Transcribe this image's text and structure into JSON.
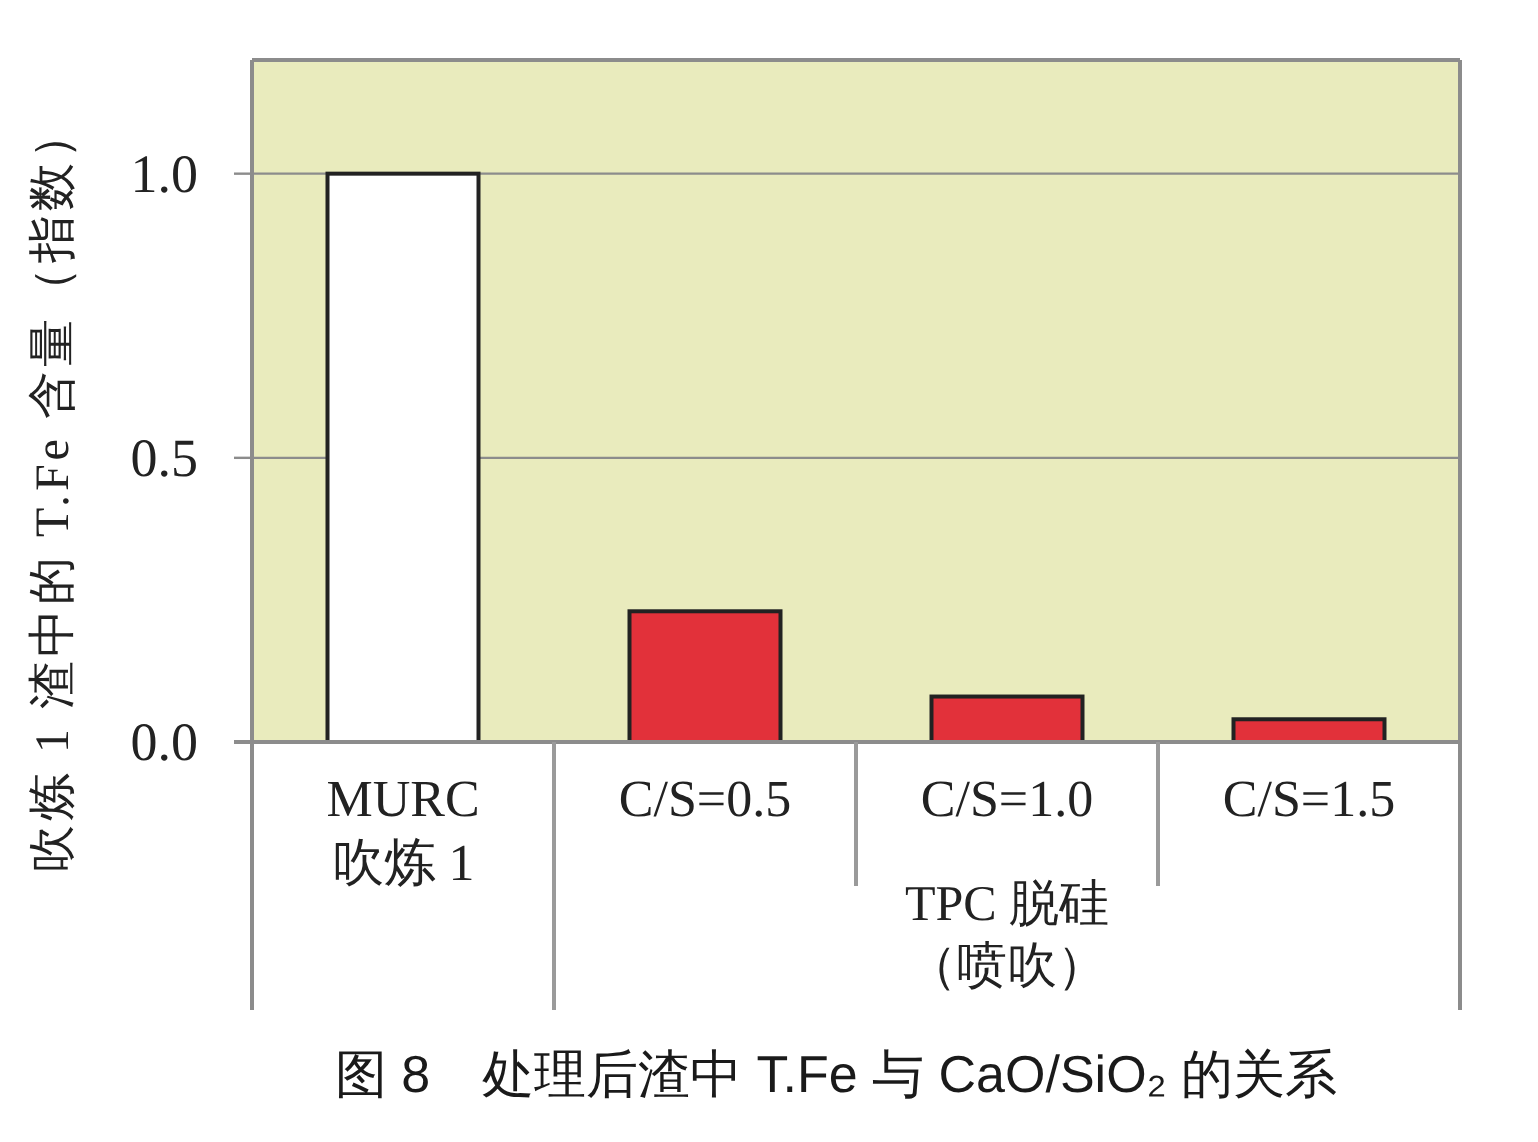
{
  "chart_data": {
    "type": "bar",
    "title": "图 8　处理后渣中 T.Fe 与 CaO/SiO₂ 的关系",
    "ylabel": "吹炼 1 渣中的 T.Fe 含量（指数）",
    "categories": [
      "MURC\n吹炼 1",
      "C/S=0.5",
      "C/S=1.0",
      "C/S=1.5"
    ],
    "values": [
      1.0,
      0.23,
      0.08,
      0.04
    ],
    "colors": [
      "#ffffff",
      "#e2313a",
      "#e2313a",
      "#e2313a"
    ],
    "ylim": [
      0,
      1.2
    ],
    "yticks": [
      {
        "value": 0,
        "label": "0.0"
      },
      0.5,
      {
        "value": 1,
        "label": "1.0"
      }
    ],
    "grid": "y",
    "annotations": [
      "TPC 脱硅（喷吹）"
    ]
  }
}
